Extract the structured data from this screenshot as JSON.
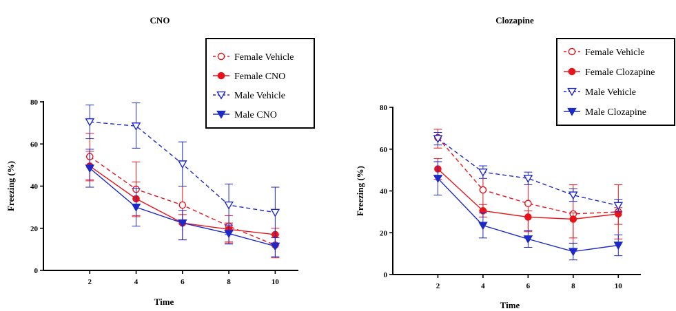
{
  "chart_data": [
    {
      "type": "line",
      "title": "CNO",
      "xlabel": "Time",
      "ylabel": "Freezing (%)",
      "x": [
        2,
        4,
        6,
        8,
        10
      ],
      "xticks": [
        "2",
        "4",
        "6",
        "8",
        "10"
      ],
      "xlim": [
        0,
        11
      ],
      "ylim": [
        0,
        80
      ],
      "yticks": [
        "0",
        "20",
        "40",
        "60",
        "80"
      ],
      "grid": false,
      "legend_position": "top-right",
      "series": [
        {
          "name": "Female Vehicle",
          "color": "#e8141c",
          "dash": true,
          "marker": "circle-open",
          "values": [
            54,
            38.5,
            31,
            21,
            12
          ],
          "err_hi": [
            11,
            13,
            9,
            5,
            5
          ],
          "err_lo": [
            11,
            13,
            9,
            8,
            6
          ]
        },
        {
          "name": "Female CNO",
          "color": "#e8141c",
          "dash": false,
          "marker": "circle-filled",
          "values": [
            49.5,
            34,
            22.5,
            19.5,
            17
          ],
          "err_hi": [
            7,
            8,
            4,
            3,
            3
          ],
          "err_lo": [
            7,
            8,
            8,
            6,
            5
          ]
        },
        {
          "name": "Male Vehicle",
          "color": "#1c28c8",
          "dash": true,
          "marker": "triangle-open",
          "values": [
            70.5,
            68.5,
            50.5,
            31,
            27.5
          ],
          "err_hi": [
            8,
            11,
            10.5,
            10,
            12
          ],
          "err_lo": [
            8,
            10.5,
            10.5,
            14,
            15
          ]
        },
        {
          "name": "Male CNO",
          "color": "#1c28c8",
          "dash": false,
          "marker": "triangle-filled",
          "values": [
            48.5,
            30,
            22.5,
            17.5,
            11.5
          ],
          "err_hi": [
            9,
            9,
            6,
            4,
            4
          ],
          "err_lo": [
            9,
            9,
            8,
            5,
            5
          ]
        }
      ]
    },
    {
      "type": "line",
      "title": "Clozapine",
      "xlabel": "Time",
      "ylabel": "Freezing (%)",
      "x": [
        2,
        4,
        6,
        8,
        10
      ],
      "xticks": [
        "2",
        "4",
        "6",
        "8",
        "10"
      ],
      "xlim": [
        0,
        11
      ],
      "ylim": [
        0,
        80
      ],
      "yticks": [
        "0",
        "20",
        "40",
        "60",
        "80"
      ],
      "grid": false,
      "legend_position": "top-right",
      "series": [
        {
          "name": "Female Vehicle",
          "color": "#e8141c",
          "dash": true,
          "marker": "circle-open",
          "values": [
            65.5,
            40.5,
            34,
            29,
            30
          ],
          "err_hi": [
            4,
            10,
            13,
            14,
            13
          ],
          "err_lo": [
            5,
            10,
            13,
            14,
            13
          ]
        },
        {
          "name": "Female Clozapine",
          "color": "#e8141c",
          "dash": false,
          "marker": "circle-filled",
          "values": [
            50.5,
            30.5,
            27.5,
            26.5,
            29
          ],
          "err_hi": [
            5,
            3,
            3,
            3,
            3
          ],
          "err_lo": [
            5,
            3,
            7,
            9,
            5
          ]
        },
        {
          "name": "Male Vehicle",
          "color": "#1c28c8",
          "dash": true,
          "marker": "triangle-open",
          "values": [
            65,
            49,
            46,
            38,
            33
          ],
          "err_hi": [
            3,
            3,
            3,
            3,
            3
          ],
          "err_lo": [
            3,
            3,
            3,
            3,
            3
          ]
        },
        {
          "name": "Male Clozapine",
          "color": "#1c28c8",
          "dash": false,
          "marker": "triangle-filled",
          "values": [
            46,
            23.5,
            17,
            11,
            14
          ],
          "err_hi": [
            8,
            6,
            4,
            4,
            5
          ],
          "err_lo": [
            8,
            6,
            4,
            4,
            5
          ]
        }
      ]
    }
  ]
}
